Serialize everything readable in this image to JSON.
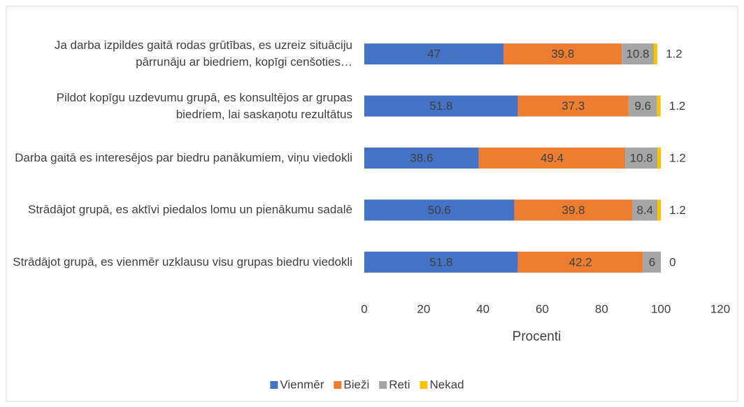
{
  "chart_data": {
    "type": "stacked_barh",
    "categories": [
      "Ja darba izpildes gaitā rodas grūtības, es uzreiz situāciju pārrunāju ar biedriem, kopīgi cenšoties…",
      "Pildot kopīgu uzdevumu grupā, es konsultējos ar grupas biedriem, lai saskaņotu rezultātus",
      "Darba gaitā es interesējos par biedru panākumiem, viņu viedokli",
      "Strādājot grupā, es aktīvi piedalos lomu un pienākumu sadalē",
      "Strādājot grupā, es vienmēr uzklausu visu grupas biedru viedokli"
    ],
    "series": [
      {
        "name": "Vienmēr",
        "color": "#4472c4",
        "values": [
          47,
          51.8,
          38.6,
          50.6,
          51.8
        ]
      },
      {
        "name": "Bieži",
        "color": "#ed7d31",
        "values": [
          39.8,
          37.3,
          49.4,
          39.8,
          42.2
        ]
      },
      {
        "name": "Reti",
        "color": "#a5a5a5",
        "values": [
          10.8,
          9.6,
          10.8,
          8.4,
          6
        ]
      },
      {
        "name": "Nekad",
        "color": "#ffc000",
        "values": [
          1.2,
          1.2,
          1.2,
          1.2,
          0
        ]
      }
    ],
    "x_label": "Procenti",
    "xlim": [
      0,
      120
    ],
    "xticks": [
      0,
      20,
      40,
      60,
      80,
      100,
      120
    ],
    "grid": false,
    "legend": "bottom"
  }
}
